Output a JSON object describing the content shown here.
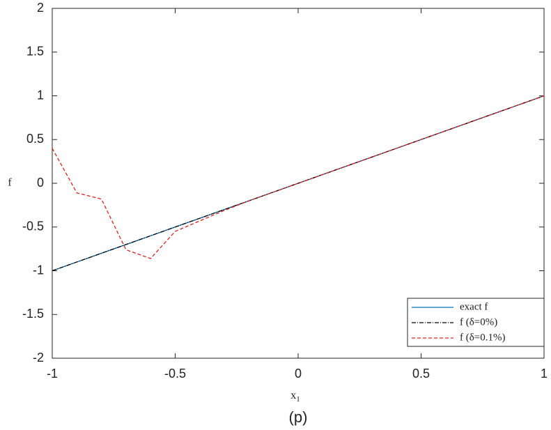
{
  "chart_data": {
    "type": "line",
    "xlabel": "x",
    "xlabel_subscript": "1",
    "ylabel": "f",
    "caption": "(p)",
    "x": [
      -1,
      -0.9,
      -0.8,
      -0.7,
      -0.6,
      -0.5,
      -0.4,
      -0.3,
      -0.2,
      -0.1,
      0,
      0.1,
      0.2,
      0.3,
      0.4,
      0.5,
      0.6,
      0.7,
      0.8,
      0.9,
      1
    ],
    "series": [
      {
        "name": "exact f",
        "color": "#0072bd",
        "style": "solid",
        "values": [
          -1,
          -0.9,
          -0.8,
          -0.7,
          -0.6,
          -0.5,
          -0.4,
          -0.3,
          -0.2,
          -0.1,
          0,
          0.1,
          0.2,
          0.3,
          0.4,
          0.5,
          0.6,
          0.7,
          0.8,
          0.9,
          1
        ]
      },
      {
        "name": "f (δ=0%)",
        "color": "#000000",
        "style": "dashdot",
        "values": [
          -1,
          -0.9,
          -0.8,
          -0.7,
          -0.6,
          -0.5,
          -0.4,
          -0.3,
          -0.2,
          -0.1,
          0,
          0.1,
          0.2,
          0.3,
          0.4,
          0.5,
          0.6,
          0.7,
          0.8,
          0.9,
          1
        ]
      },
      {
        "name": "f (δ=0.1%)",
        "color": "#e02020",
        "style": "dashed",
        "values": [
          0.4,
          -0.11,
          -0.18,
          -0.76,
          -0.86,
          -0.55,
          -0.43,
          -0.31,
          -0.2,
          -0.1,
          0,
          0.1,
          0.2,
          0.3,
          0.4,
          0.5,
          0.6,
          0.7,
          0.8,
          0.9,
          1
        ]
      }
    ],
    "xlim": [
      -1,
      1
    ],
    "xticks": [
      -1,
      -0.5,
      0,
      0.5,
      1
    ],
    "ylim": [
      -2,
      2
    ],
    "yticks": [
      -2,
      -1.5,
      -1,
      -0.5,
      0,
      0.5,
      1,
      1.5,
      2
    ],
    "grid": false,
    "legend": "lower right"
  }
}
